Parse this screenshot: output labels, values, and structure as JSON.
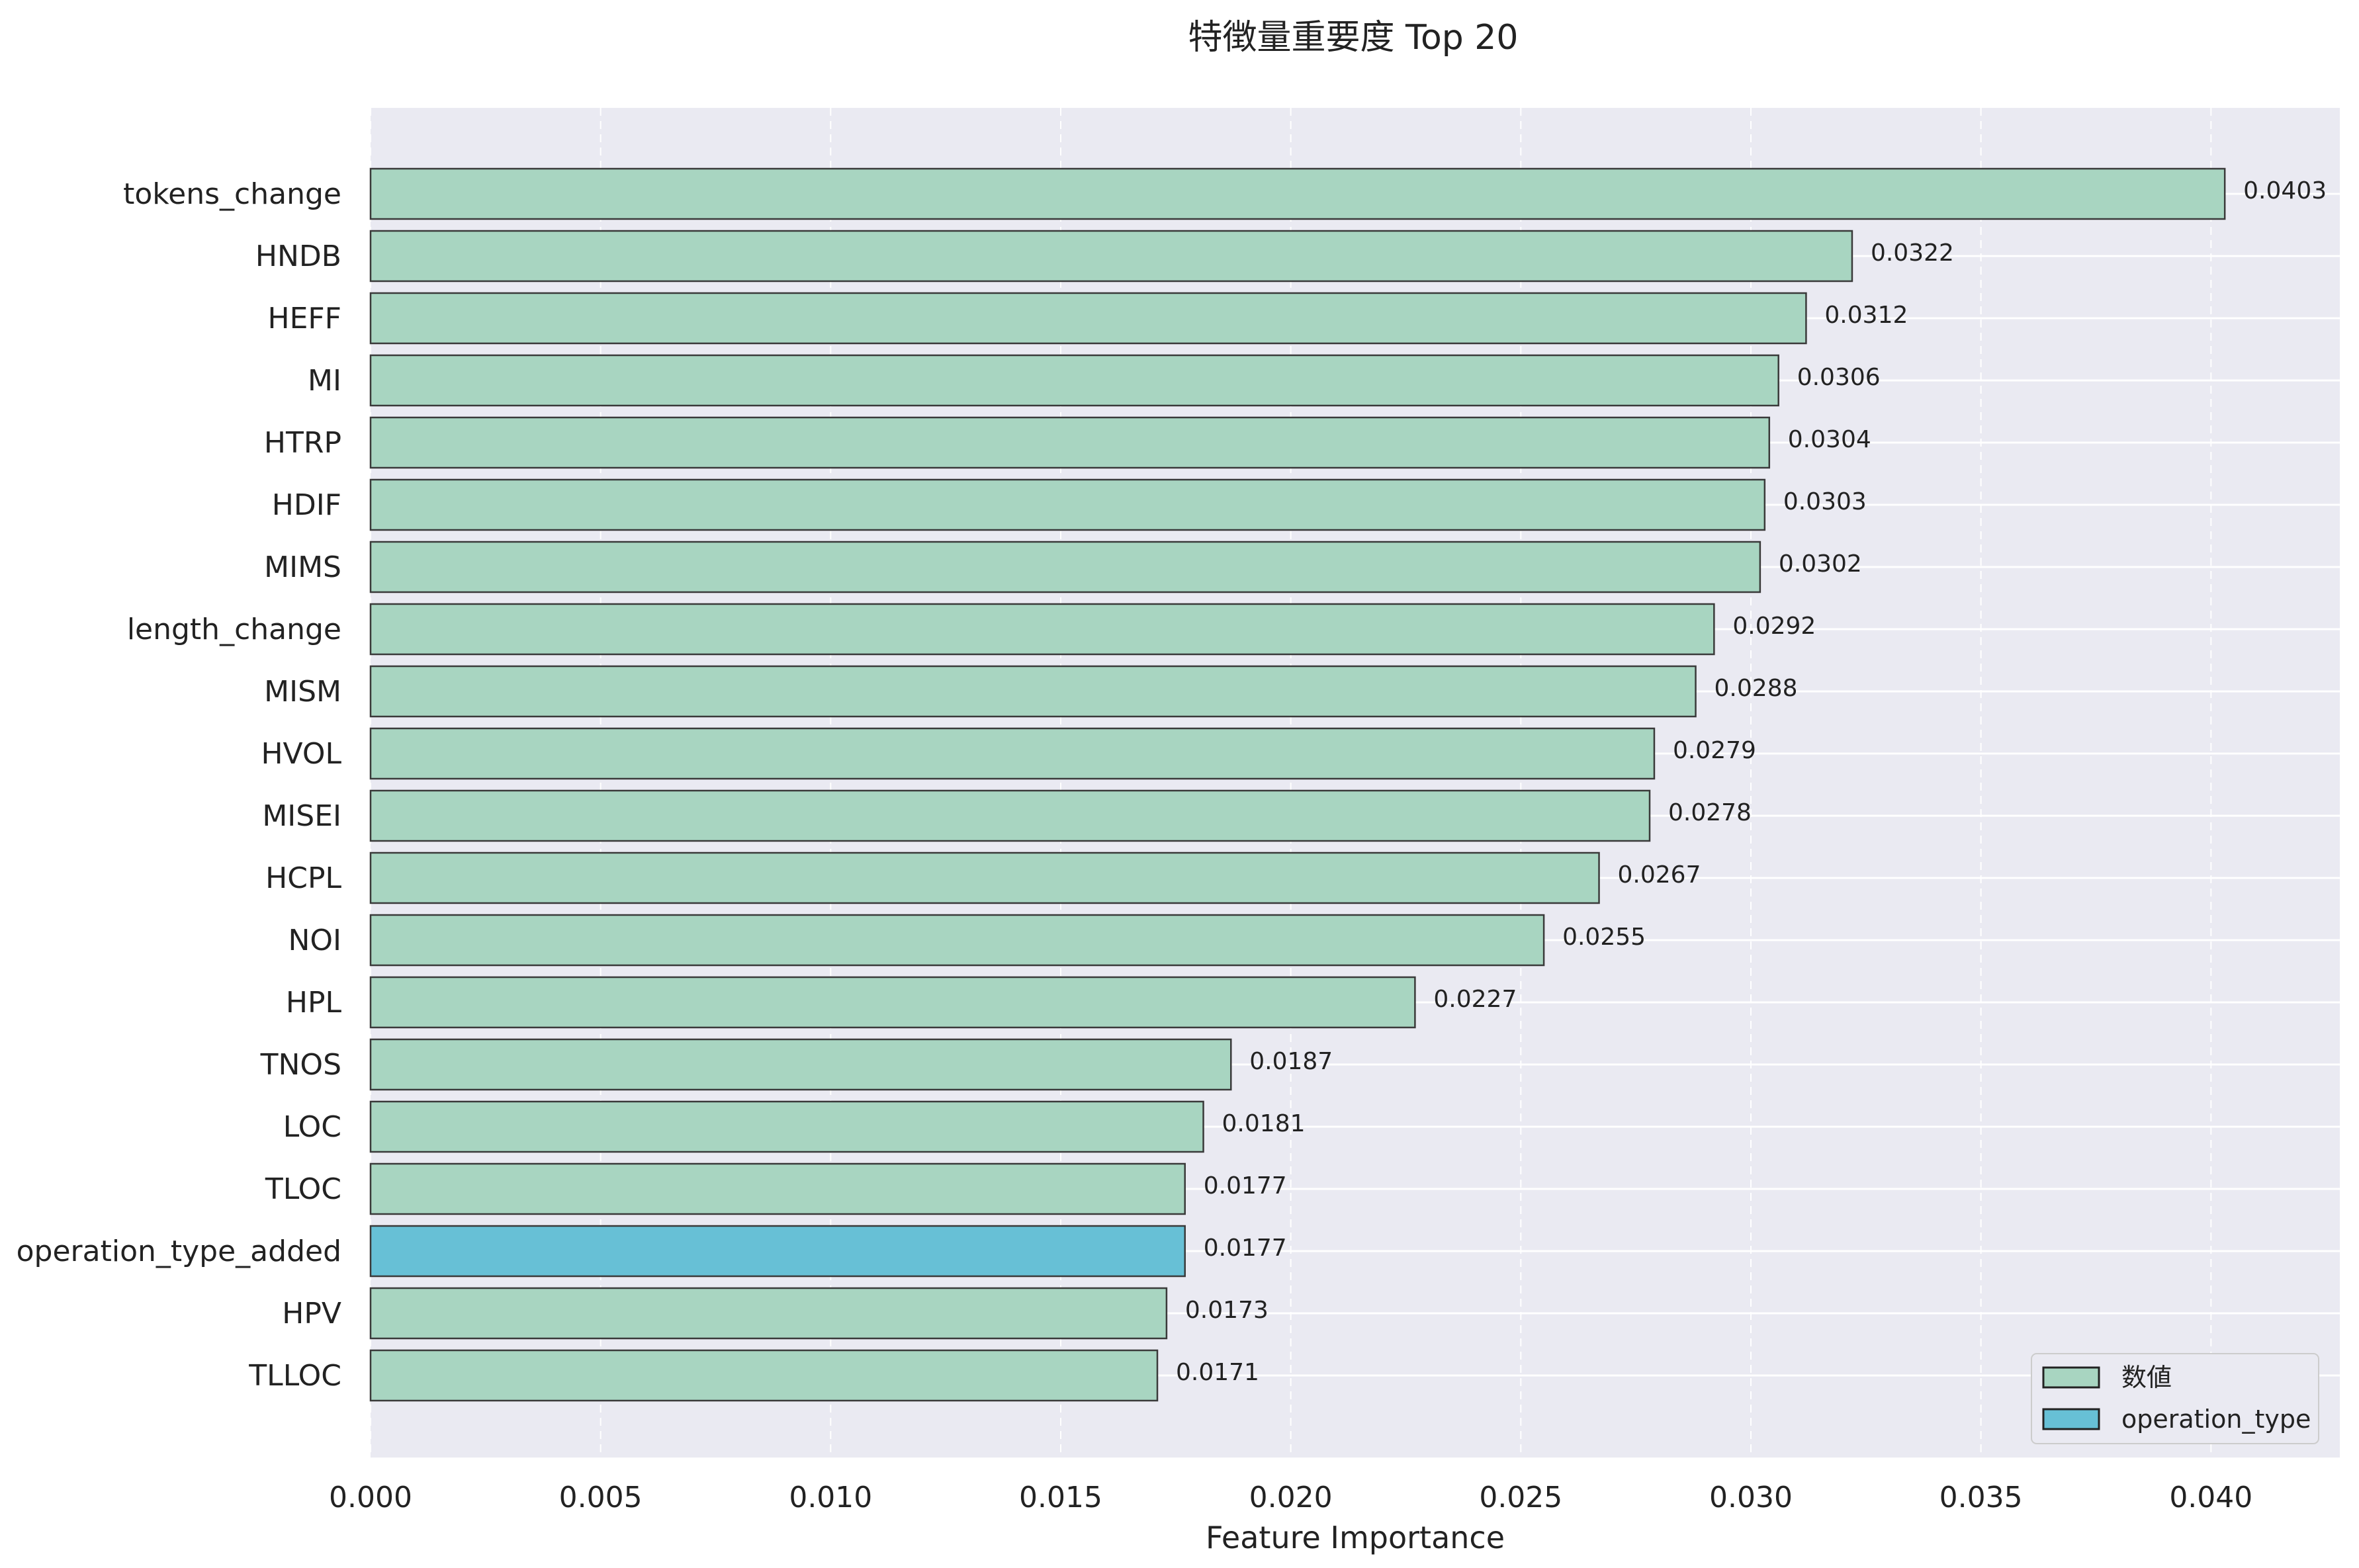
{
  "chart_data": {
    "type": "bar",
    "orientation": "horizontal",
    "title": "特徴量重要度 Top 20",
    "xlabel": "Feature Importance",
    "ylabel": "",
    "xlim": [
      0,
      0.0428
    ],
    "xticks": [
      "0.000",
      "0.005",
      "0.010",
      "0.015",
      "0.020",
      "0.025",
      "0.030",
      "0.035",
      "0.040"
    ],
    "grid": true,
    "legend_position": "bottom-right",
    "categories": [
      "tokens_change",
      "HNDB",
      "HEFF",
      "MI",
      "HTRP",
      "HDIF",
      "MIMS",
      "length_change",
      "MISM",
      "HVOL",
      "MISEI",
      "HCPL",
      "NOI",
      "HPL",
      "TNOS",
      "LOC",
      "TLOC",
      "operation_type_added",
      "HPV",
      "TLLOC"
    ],
    "values": [
      0.0403,
      0.0322,
      0.0312,
      0.0306,
      0.0304,
      0.0303,
      0.0302,
      0.0292,
      0.0288,
      0.0279,
      0.0278,
      0.0267,
      0.0255,
      0.0227,
      0.0187,
      0.0181,
      0.0177,
      0.0177,
      0.0173,
      0.0171
    ],
    "value_labels": [
      "0.0403",
      "0.0322",
      "0.0312",
      "0.0306",
      "0.0304",
      "0.0303",
      "0.0302",
      "0.0292",
      "0.0288",
      "0.0279",
      "0.0278",
      "0.0267",
      "0.0255",
      "0.0227",
      "0.0187",
      "0.0181",
      "0.0177",
      "0.0177",
      "0.0173",
      "0.0171"
    ],
    "groups": [
      "数値",
      "数値",
      "数値",
      "数値",
      "数値",
      "数値",
      "数値",
      "数値",
      "数値",
      "数値",
      "数値",
      "数値",
      "数値",
      "数値",
      "数値",
      "数値",
      "数値",
      "operation_type",
      "数値",
      "数値"
    ],
    "legend": [
      {
        "name": "数値",
        "color": "#a8d5c1"
      },
      {
        "name": "operation_type",
        "color": "#67c0d6"
      }
    ],
    "colors": {
      "plot_background": "#eaeaf2",
      "grid": "#ffffff",
      "bar_edge": "#3a3a3a"
    }
  }
}
